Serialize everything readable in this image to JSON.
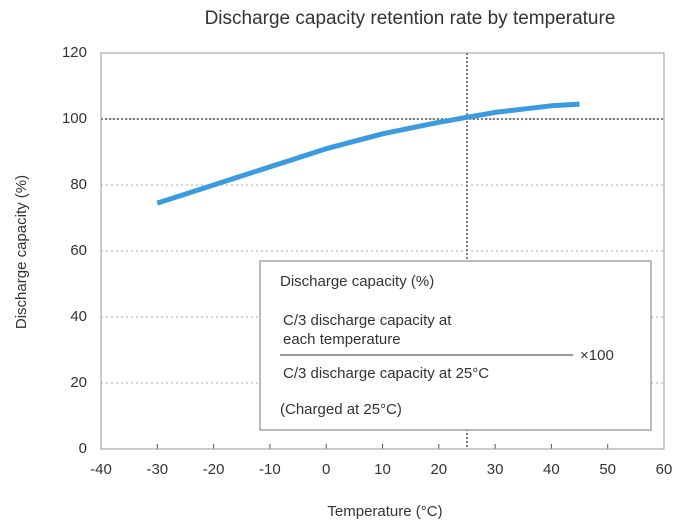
{
  "chart_data": {
    "type": "line",
    "title": "Discharge capacity retention rate by temperature",
    "x_label": "Temperature (°C)",
    "y_label": "Discharge capacity (%)",
    "x": [
      -30,
      -20,
      -10,
      0,
      10,
      20,
      25,
      30,
      40,
      45
    ],
    "series": [
      {
        "name": "Discharge capacity",
        "color": "#3a9be0",
        "values": [
          74.5,
          80,
          85.5,
          91,
          95.5,
          99,
          100.5,
          102,
          104,
          104.5
        ]
      }
    ],
    "xlim": [
      -40,
      60
    ],
    "xticks": [
      -40,
      -30,
      -20,
      -10,
      0,
      10,
      20,
      30,
      40,
      50,
      60
    ],
    "ylim": [
      0,
      120
    ],
    "yticks": [
      0,
      20,
      40,
      60,
      80,
      100,
      120
    ],
    "grid": true,
    "reference_lines": {
      "x": 25,
      "y": 100
    },
    "annotation": {
      "heading": "Discharge capacity (%)",
      "numerator": [
        "C/3 discharge capacity at",
        "each temperature"
      ],
      "denominator": "C/3 discharge capacity at 25°C",
      "multiplier": "×100",
      "note": "(Charged at 25°C)"
    }
  }
}
